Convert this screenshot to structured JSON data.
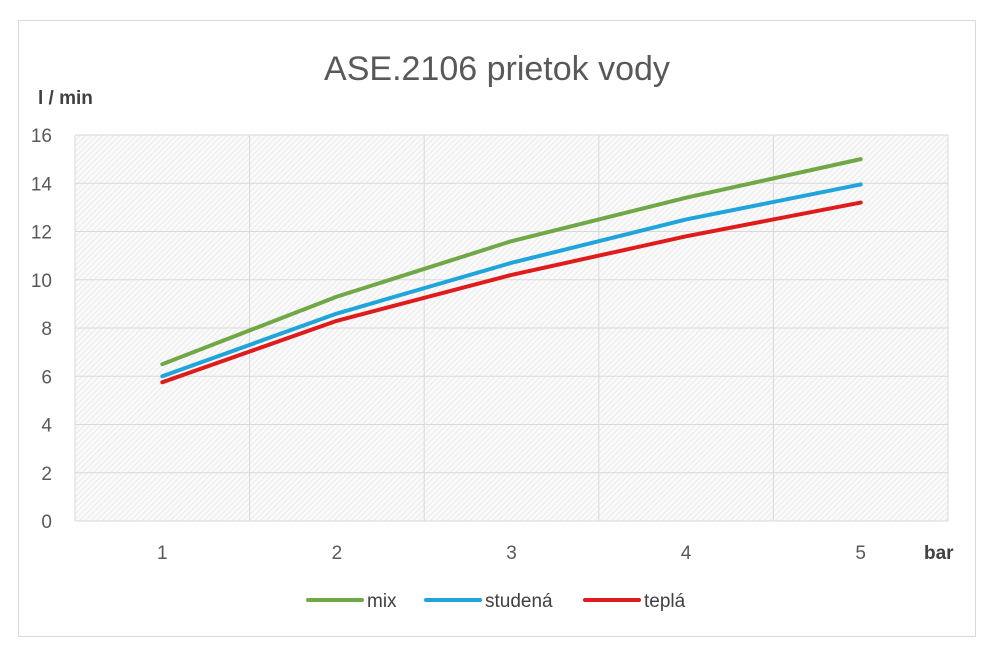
{
  "chart_data": {
    "type": "line",
    "title": "ASE.2106 prietok vody",
    "ylabel": "l / min",
    "xlabel": "bar",
    "categories": [
      "1",
      "2",
      "3",
      "4",
      "5"
    ],
    "ylim": [
      0,
      16
    ],
    "yticks": [
      0,
      2,
      4,
      6,
      8,
      10,
      12,
      14,
      16
    ],
    "grid": true,
    "plot_background": "hatched light gray",
    "legend_position": "bottom",
    "series": [
      {
        "name": "mix",
        "color": "#70a845",
        "values": [
          6.5,
          9.3,
          11.6,
          13.4,
          15.0
        ]
      },
      {
        "name": "studená",
        "color": "#1fa5dc",
        "values": [
          6.0,
          8.6,
          10.7,
          12.5,
          13.95
        ]
      },
      {
        "name": "teplá",
        "color": "#e01b1b",
        "values": [
          5.75,
          8.3,
          10.2,
          11.8,
          13.2
        ]
      }
    ]
  }
}
